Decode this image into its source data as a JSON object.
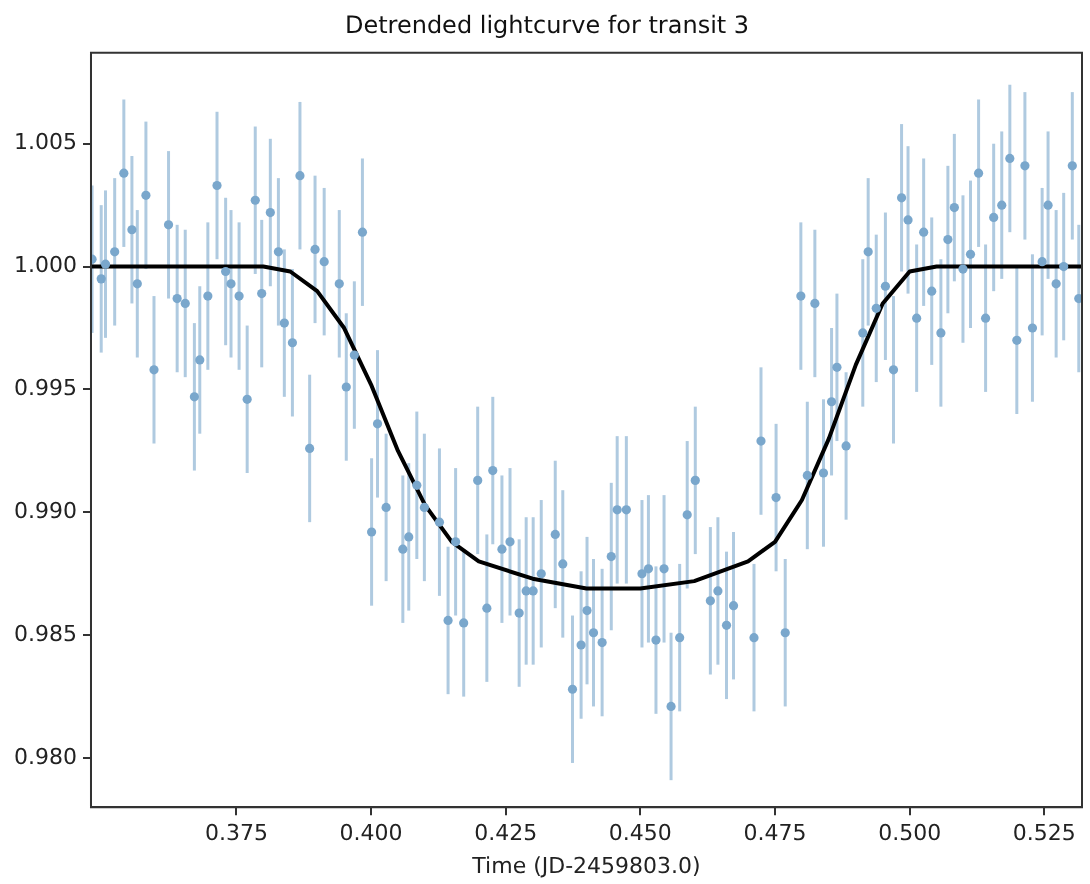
{
  "chart_data": {
    "type": "scatter",
    "title": "Detrended lightcurve for transit 3",
    "xlabel": "Time (JD-2459803.0)",
    "xlim": [
      0.348,
      0.532
    ],
    "ylim": [
      0.978,
      1.0087
    ],
    "xticks": [
      0.375,
      {
        "value": 0.4,
        "label": "0.400"
      },
      0.425,
      {
        "value": 0.45,
        "label": "0.450"
      },
      0.475,
      {
        "value": 0.5,
        "label": "0.500"
      },
      0.525
    ],
    "yticks": [
      {
        "value": 0.98,
        "label": "0.980"
      },
      0.985,
      {
        "value": 0.99,
        "label": "0.990"
      },
      0.995,
      {
        "value": 1.0,
        "label": "1.000"
      },
      1.005
    ],
    "grid": false,
    "legend": false,
    "series": [
      {
        "color": "#7aa7cc",
        "marker": "circle",
        "x": [
          0.3482,
          0.3499,
          0.3507,
          0.3524,
          0.3541,
          0.3556,
          0.3566,
          0.3582,
          0.3597,
          0.3624,
          0.364,
          0.3655,
          0.3672,
          0.3682,
          0.3697,
          0.3714,
          0.373,
          0.374,
          0.3755,
          0.377,
          0.3785,
          0.3797,
          0.3813,
          0.3828,
          0.3839,
          0.3854,
          0.3868,
          0.3886,
          0.3896,
          0.3913,
          0.3941,
          0.3954,
          0.3969,
          0.3984,
          0.4001,
          0.4012,
          0.4028,
          0.4059,
          0.407,
          0.4085,
          0.4099,
          0.4127,
          0.4143,
          0.4157,
          0.4172,
          0.4198,
          0.4215,
          0.4226,
          0.4243,
          0.4258,
          0.4275,
          0.4288,
          0.4301,
          0.4316,
          0.4342,
          0.4356,
          0.4374,
          0.439,
          0.4401,
          0.4413,
          0.4429,
          0.4446,
          0.4457,
          0.4474,
          0.4503,
          0.4515,
          0.4529,
          0.4544,
          0.4557,
          0.4573,
          0.4587,
          0.4602,
          0.463,
          0.4644,
          0.466,
          0.4673,
          0.4711,
          0.4724,
          0.4752,
          0.4769,
          0.4798,
          0.481,
          0.4824,
          0.484,
          0.4855,
          0.4865,
          0.4882,
          0.4913,
          0.4923,
          0.4938,
          0.4955,
          0.497,
          0.4985,
          0.4997,
          0.5013,
          0.5026,
          0.5041,
          0.5058,
          0.5071,
          0.5083,
          0.5099,
          0.5113,
          0.5128,
          0.5141,
          0.5156,
          0.5171,
          0.5186,
          0.5199,
          0.5214,
          0.5228,
          0.5246,
          0.5257,
          0.5272,
          0.5286,
          0.5302,
          0.5314
        ],
        "values": [
          1.0003,
          0.9995,
          1.0001,
          1.0006,
          1.0038,
          1.0015,
          0.9993,
          1.0029,
          0.9958,
          1.0017,
          0.9987,
          0.9985,
          0.9947,
          0.9962,
          0.9988,
          1.0033,
          0.9998,
          0.9993,
          0.9988,
          0.9946,
          1.0027,
          0.9989,
          1.0022,
          1.0006,
          0.9977,
          0.9969,
          1.0037,
          0.9926,
          1.0007,
          1.0002,
          0.9993,
          0.9951,
          0.9964,
          1.0014,
          0.9892,
          0.9936,
          0.9902,
          0.9885,
          0.989,
          0.9911,
          0.9902,
          0.9896,
          0.9856,
          0.9888,
          0.9855,
          0.9913,
          0.9861,
          0.9917,
          0.9885,
          0.9888,
          0.9859,
          0.9868,
          0.9868,
          0.9875,
          0.9891,
          0.9879,
          0.9828,
          0.9846,
          0.986,
          0.9851,
          0.9847,
          0.9882,
          0.9901,
          0.9901,
          0.9875,
          0.9877,
          0.9848,
          0.9877,
          0.9821,
          0.9849,
          0.9899,
          0.9913,
          0.9864,
          0.9868,
          0.9854,
          0.9862,
          0.9849,
          0.9929,
          0.9906,
          0.9851,
          0.9988,
          0.9915,
          0.9985,
          0.9916,
          0.9945,
          0.9959,
          0.9927,
          0.9973,
          1.0006,
          0.9983,
          0.9992,
          0.9958,
          1.0028,
          1.0019,
          0.9979,
          1.0014,
          0.999,
          0.9973,
          1.0011,
          1.0024,
          0.9999,
          1.0005,
          1.0038,
          0.9979,
          1.002,
          1.0025,
          1.0044,
          0.997,
          1.0041,
          0.9975,
          1.0002,
          1.0025,
          0.9993,
          1.0,
          1.0041,
          0.9987
        ],
        "errors": [
          0.003,
          0.003,
          0.003,
          0.003,
          0.003,
          0.003,
          0.003,
          0.003,
          0.003,
          0.003,
          0.003,
          0.003,
          0.003,
          0.003,
          0.003,
          0.003,
          0.003,
          0.003,
          0.003,
          0.003,
          0.003,
          0.003,
          0.003,
          0.003,
          0.003,
          0.003,
          0.003,
          0.003,
          0.003,
          0.003,
          0.003,
          0.003,
          0.003,
          0.003,
          0.003,
          0.003,
          0.003,
          0.003,
          0.003,
          0.003,
          0.003,
          0.003,
          0.003,
          0.003,
          0.003,
          0.003,
          0.003,
          0.003,
          0.003,
          0.003,
          0.003,
          0.003,
          0.003,
          0.003,
          0.003,
          0.003,
          0.003,
          0.003,
          0.003,
          0.003,
          0.003,
          0.003,
          0.003,
          0.003,
          0.003,
          0.003,
          0.003,
          0.003,
          0.003,
          0.003,
          0.003,
          0.003,
          0.003,
          0.003,
          0.003,
          0.003,
          0.003,
          0.003,
          0.003,
          0.003,
          0.003,
          0.003,
          0.003,
          0.003,
          0.003,
          0.003,
          0.003,
          0.003,
          0.003,
          0.003,
          0.003,
          0.003,
          0.003,
          0.003,
          0.003,
          0.003,
          0.003,
          0.003,
          0.003,
          0.003,
          0.003,
          0.003,
          0.003,
          0.003,
          0.003,
          0.003,
          0.003,
          0.003,
          0.003,
          0.003,
          0.003,
          0.003,
          0.003,
          0.003,
          0.003,
          0.003
        ]
      },
      {
        "type": "line",
        "color": "#000000",
        "marker": "none",
        "line_style": "solid",
        "x": [
          0.348,
          0.38,
          0.385,
          0.39,
          0.395,
          0.4,
          0.405,
          0.41,
          0.415,
          0.42,
          0.43,
          0.44,
          0.45,
          0.46,
          0.47,
          0.475,
          0.48,
          0.485,
          0.49,
          0.495,
          0.5,
          0.505,
          0.532
        ],
        "values": [
          1.0,
          1.0,
          0.9998,
          0.999,
          0.9975,
          0.9952,
          0.9925,
          0.9903,
          0.9888,
          0.988,
          0.9873,
          0.9869,
          0.9869,
          0.9872,
          0.988,
          0.9888,
          0.9905,
          0.993,
          0.996,
          0.9985,
          0.9998,
          1.0,
          1.0
        ]
      }
    ]
  }
}
